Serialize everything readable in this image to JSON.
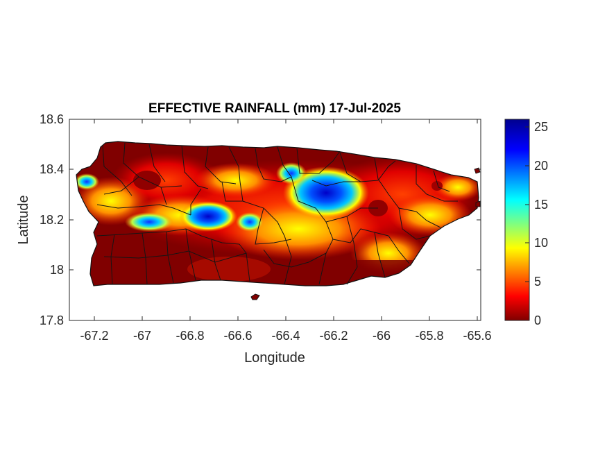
{
  "map": {
    "title": "EFFECTIVE RAINFALL (mm) 17-Jul-2025",
    "xlabel": "Longitude",
    "ylabel": "Latitude",
    "x_ticks": [
      "-67.2",
      "-67",
      "-66.8",
      "-66.6",
      "-66.4",
      "-66.2",
      "-66",
      "-65.8",
      "-65.6"
    ],
    "y_ticks": [
      "18.6",
      "18.4",
      "18.2",
      "18",
      "17.8"
    ],
    "xlim": [
      -67.3,
      -65.58
    ],
    "ylim": [
      17.8,
      18.6
    ],
    "units": "mm",
    "colormap": "jet",
    "background_color": "#800000",
    "colorbar": {
      "ticks": [
        "25",
        "20",
        "15",
        "10",
        "5",
        "0"
      ],
      "range": [
        0,
        26
      ]
    }
  }
}
